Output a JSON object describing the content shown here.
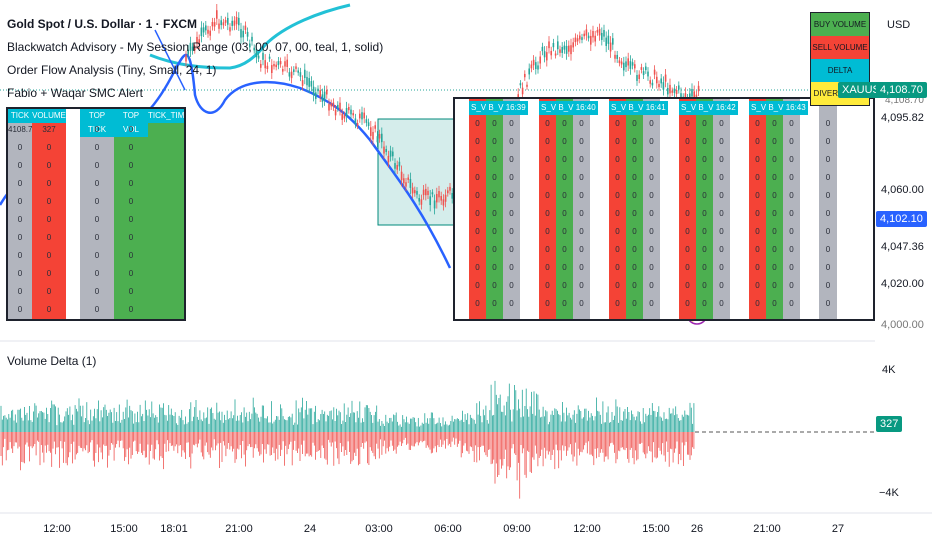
{
  "header": {
    "symbol_title": "Gold Spot / U.S. Dollar · 1 · FXCM",
    "indicator_1": "Blackwatch Advisory - My Session Range (03, 00, 07, 00, teal, 1, solid)",
    "indicator_2": "Order Flow Analysis (Tiny, Small, 24, 1)",
    "indicator_3": "Fabio + Waqar SMC Alert"
  },
  "price_axis": {
    "currency": "USD",
    "labels": [
      "4,095.82",
      "4,060.00",
      "4,047.36",
      "4,020.00",
      "4,000.00"
    ],
    "xauusd_label": "XAUUSD",
    "xauusd_price": "4,108.70",
    "blue_tag": "4,102.10",
    "partial_label": "4,108.70"
  },
  "volume_axis": {
    "top": "4K",
    "bottom": "−4K",
    "current": "327"
  },
  "volume_pane_title": "Volume Delta (1)",
  "time_axis": [
    "12:00",
    "15:00",
    "18:01",
    "21:00",
    "24",
    "03:00",
    "06:00",
    "09:00",
    "12:00",
    "15:00",
    "26",
    "21:00",
    "27"
  ],
  "legend_box": [
    "BUY VOLUME",
    "SELL VOLUME",
    "DELTA",
    "DIVERGENCE"
  ],
  "legend_colors": [
    "#4caf50",
    "#f44336",
    "#00bcd4",
    "#ffeb3b"
  ],
  "left_table": {
    "headers": [
      "TICK",
      "VOLUME",
      "",
      "TOP TICK",
      "TOP VOL",
      "TICK_TIME"
    ],
    "first_row": [
      "4108.7",
      "327",
      "",
      "0",
      "0",
      ""
    ],
    "zero": "0"
  },
  "right_table": {
    "groups": [
      {
        "sv": "S_V",
        "bv": "B_V",
        "time": "16:39"
      },
      {
        "sv": "S_V",
        "bv": "B_V",
        "time": "16:40"
      },
      {
        "sv": "S_V",
        "bv": "B_V",
        "time": "16:41"
      },
      {
        "sv": "S_V",
        "bv": "B_V",
        "time": "16:42"
      },
      {
        "sv": "S_V",
        "bv": "B_V",
        "time": "16:43"
      }
    ],
    "zero": "0"
  },
  "colors": {
    "up": "#26a69a",
    "down": "#ef5350",
    "cyan_line": "#22c1d6",
    "blue_line": "#2962ff",
    "cell_red": "#f44336",
    "cell_green": "#4caf50",
    "cell_gray": "#b2b5be",
    "header_cyan": "#00bcd4"
  }
}
